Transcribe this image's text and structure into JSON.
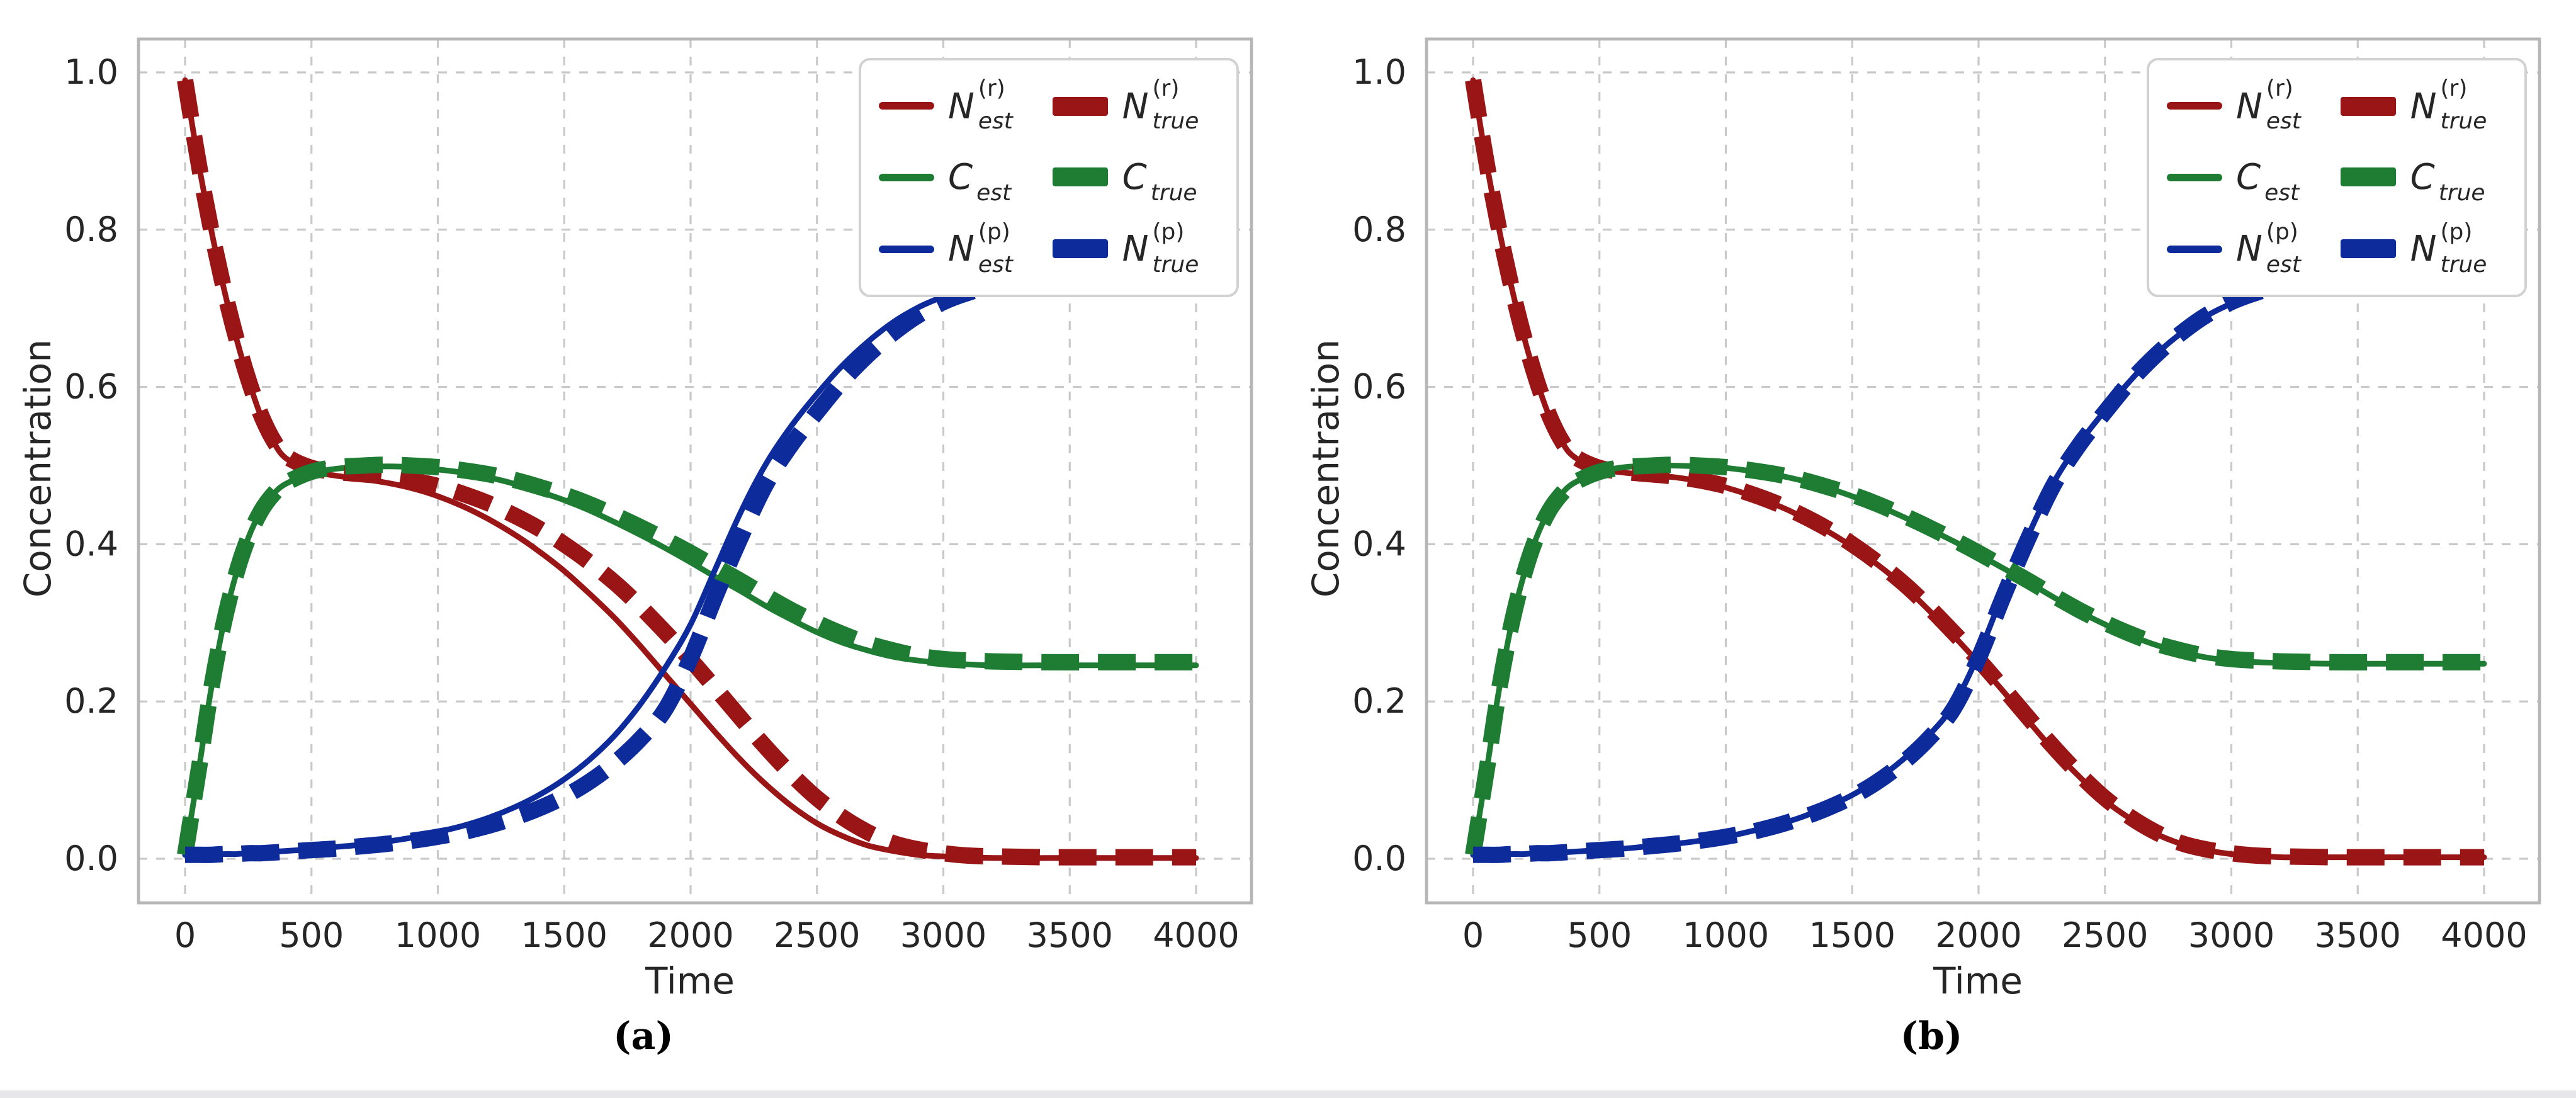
{
  "figure": {
    "background": "#ffffff",
    "bottom_strip_color": "#e7e7ea",
    "text_color": "#262626",
    "grid_color": "#c9c9c9",
    "spine_color": "#b6b6b6"
  },
  "colors": {
    "red": "#9a1515",
    "green": "#1e7d32",
    "blue": "#0e2b9c"
  },
  "legend": {
    "items": [
      {
        "base": "N",
        "sup": "(r)",
        "sub": "est",
        "color": "red",
        "swatch": "line"
      },
      {
        "base": "C",
        "sup": "",
        "sub": "est",
        "color": "green",
        "swatch": "line"
      },
      {
        "base": "N",
        "sup": "(p)",
        "sub": "est",
        "color": "blue",
        "swatch": "line"
      },
      {
        "base": "N",
        "sup": "(r)",
        "sub": "true",
        "color": "red",
        "swatch": "dash"
      },
      {
        "base": "C",
        "sup": "",
        "sub": "true",
        "color": "green",
        "swatch": "dash"
      },
      {
        "base": "N",
        "sup": "(p)",
        "sub": "true",
        "color": "blue",
        "swatch": "dash"
      }
    ]
  },
  "chart_data": [
    {
      "type": "line",
      "caption": "(a)",
      "xlabel": "Time",
      "ylabel": "Concentration",
      "xticks": [
        0,
        500,
        1000,
        1500,
        2000,
        2500,
        3000,
        3500,
        4000
      ],
      "yticklabels": [
        "0.0",
        "0.2",
        "0.4",
        "0.6",
        "0.8",
        "1.0"
      ],
      "xlim": [
        -180,
        4220
      ],
      "ylim": [
        -0.056,
        1.043
      ],
      "grid": true,
      "legend_position": "upper right",
      "x": [
        0,
        30,
        60,
        100,
        150,
        200,
        250,
        300,
        350,
        400,
        500,
        600,
        700,
        800,
        900,
        1000,
        1100,
        1200,
        1300,
        1400,
        1500,
        1600,
        1700,
        1800,
        1900,
        2000,
        2100,
        2200,
        2300,
        2400,
        2500,
        2600,
        2700,
        2800,
        2900,
        3000,
        3100,
        3200,
        3400,
        3600,
        3800,
        4000
      ],
      "series": [
        {
          "name": "N_est^(r)",
          "role": "estimate",
          "color": "red",
          "style": "solid",
          "values": [
            0.99,
            0.93,
            0.873,
            0.805,
            0.73,
            0.665,
            0.61,
            0.563,
            0.53,
            0.509,
            0.493,
            0.487,
            0.483,
            0.478,
            0.471,
            0.461,
            0.448,
            0.432,
            0.413,
            0.391,
            0.366,
            0.337,
            0.306,
            0.271,
            0.234,
            0.197,
            0.16,
            0.125,
            0.094,
            0.067,
            0.045,
            0.029,
            0.017,
            0.01,
            0.005,
            0.003,
            0.002,
            0.001,
            0.001,
            0.001,
            0.001,
            0.001
          ]
        },
        {
          "name": "C_est",
          "role": "estimate",
          "color": "green",
          "style": "solid",
          "values": [
            0.005,
            0.065,
            0.125,
            0.21,
            0.295,
            0.36,
            0.408,
            0.442,
            0.464,
            0.477,
            0.49,
            0.496,
            0.498,
            0.499,
            0.498,
            0.495,
            0.491,
            0.485,
            0.477,
            0.467,
            0.456,
            0.443,
            0.428,
            0.412,
            0.395,
            0.377,
            0.358,
            0.34,
            0.321,
            0.304,
            0.288,
            0.275,
            0.265,
            0.257,
            0.252,
            0.249,
            0.247,
            0.246,
            0.246,
            0.246,
            0.246,
            0.246
          ]
        },
        {
          "name": "N_est^(p)",
          "role": "estimate",
          "color": "blue",
          "style": "solid",
          "values": [
            0.005,
            0.005,
            0.005,
            0.005,
            0.006,
            0.006,
            0.007,
            0.008,
            0.009,
            0.01,
            0.012,
            0.015,
            0.018,
            0.022,
            0.027,
            0.034,
            0.042,
            0.052,
            0.065,
            0.081,
            0.101,
            0.126,
            0.157,
            0.196,
            0.243,
            0.298,
            0.37,
            0.442,
            0.503,
            0.551,
            0.591,
            0.627,
            0.657,
            0.682,
            0.701,
            0.715,
            0.726,
            0.733,
            0.741,
            0.745,
            0.747,
            0.747
          ]
        },
        {
          "name": "N_true^(r)",
          "role": "true",
          "color": "red",
          "style": "dashed",
          "values": [
            0.99,
            0.93,
            0.873,
            0.805,
            0.73,
            0.665,
            0.61,
            0.565,
            0.532,
            0.512,
            0.497,
            0.492,
            0.489,
            0.486,
            0.481,
            0.474,
            0.464,
            0.452,
            0.437,
            0.42,
            0.4,
            0.377,
            0.351,
            0.321,
            0.288,
            0.253,
            0.216,
            0.178,
            0.141,
            0.107,
            0.077,
            0.053,
            0.034,
            0.02,
            0.012,
            0.007,
            0.004,
            0.003,
            0.002,
            0.002,
            0.002,
            0.002
          ]
        },
        {
          "name": "C_true",
          "role": "true",
          "color": "green",
          "style": "dashed",
          "values": [
            0.005,
            0.065,
            0.125,
            0.21,
            0.295,
            0.36,
            0.408,
            0.442,
            0.464,
            0.478,
            0.492,
            0.498,
            0.5,
            0.501,
            0.5,
            0.498,
            0.494,
            0.489,
            0.482,
            0.473,
            0.463,
            0.451,
            0.437,
            0.422,
            0.406,
            0.389,
            0.371,
            0.353,
            0.334,
            0.316,
            0.3,
            0.286,
            0.274,
            0.265,
            0.258,
            0.254,
            0.252,
            0.251,
            0.25,
            0.25,
            0.25,
            0.25
          ]
        },
        {
          "name": "N_true^(p)",
          "role": "true",
          "color": "blue",
          "style": "dashed",
          "values": [
            0.005,
            0.005,
            0.005,
            0.005,
            0.006,
            0.006,
            0.007,
            0.007,
            0.008,
            0.009,
            0.011,
            0.013,
            0.016,
            0.019,
            0.023,
            0.028,
            0.034,
            0.042,
            0.052,
            0.064,
            0.079,
            0.098,
            0.122,
            0.152,
            0.19,
            0.255,
            0.335,
            0.41,
            0.477,
            0.527,
            0.568,
            0.607,
            0.64,
            0.668,
            0.691,
            0.708,
            0.72,
            0.729,
            0.739,
            0.744,
            0.746,
            0.747
          ]
        }
      ]
    },
    {
      "type": "line",
      "caption": "(b)",
      "xlabel": "Time",
      "ylabel": "Concentration",
      "xticks": [
        0,
        500,
        1000,
        1500,
        2000,
        2500,
        3000,
        3500,
        4000
      ],
      "yticklabels": [
        "0.0",
        "0.2",
        "0.4",
        "0.6",
        "0.8",
        "1.0"
      ],
      "xlim": [
        -180,
        4220
      ],
      "ylim": [
        -0.056,
        1.043
      ],
      "grid": true,
      "legend_position": "upper right",
      "x": [
        0,
        30,
        60,
        100,
        150,
        200,
        250,
        300,
        350,
        400,
        500,
        600,
        700,
        800,
        900,
        1000,
        1100,
        1200,
        1300,
        1400,
        1500,
        1600,
        1700,
        1800,
        1900,
        2000,
        2100,
        2200,
        2300,
        2400,
        2500,
        2600,
        2700,
        2800,
        2900,
        3000,
        3100,
        3200,
        3400,
        3600,
        3800,
        4000
      ],
      "series": [
        {
          "name": "N_est^(r)",
          "role": "estimate",
          "color": "red",
          "style": "solid",
          "values": [
            0.99,
            0.93,
            0.873,
            0.805,
            0.73,
            0.665,
            0.61,
            0.564,
            0.531,
            0.511,
            0.496,
            0.491,
            0.488,
            0.485,
            0.48,
            0.472,
            0.462,
            0.45,
            0.435,
            0.417,
            0.397,
            0.374,
            0.348,
            0.317,
            0.284,
            0.249,
            0.212,
            0.174,
            0.137,
            0.104,
            0.074,
            0.051,
            0.032,
            0.019,
            0.011,
            0.006,
            0.004,
            0.002,
            0.002,
            0.002,
            0.002,
            0.002
          ]
        },
        {
          "name": "C_est",
          "role": "estimate",
          "color": "green",
          "style": "solid",
          "values": [
            0.005,
            0.065,
            0.125,
            0.21,
            0.295,
            0.36,
            0.408,
            0.442,
            0.464,
            0.478,
            0.492,
            0.498,
            0.5,
            0.5,
            0.499,
            0.497,
            0.493,
            0.488,
            0.481,
            0.472,
            0.461,
            0.449,
            0.435,
            0.42,
            0.404,
            0.387,
            0.369,
            0.351,
            0.332,
            0.314,
            0.298,
            0.284,
            0.272,
            0.263,
            0.256,
            0.252,
            0.25,
            0.249,
            0.248,
            0.248,
            0.248,
            0.248
          ]
        },
        {
          "name": "N_est^(p)",
          "role": "estimate",
          "color": "blue",
          "style": "solid",
          "values": [
            0.005,
            0.005,
            0.005,
            0.005,
            0.006,
            0.006,
            0.007,
            0.007,
            0.008,
            0.009,
            0.011,
            0.013,
            0.016,
            0.019,
            0.023,
            0.028,
            0.035,
            0.043,
            0.053,
            0.066,
            0.081,
            0.101,
            0.126,
            0.156,
            0.195,
            0.26,
            0.34,
            0.414,
            0.48,
            0.529,
            0.57,
            0.608,
            0.641,
            0.668,
            0.69,
            0.706,
            0.718,
            0.727,
            0.737,
            0.742,
            0.744,
            0.745
          ]
        },
        {
          "name": "N_true^(r)",
          "role": "true",
          "color": "red",
          "style": "dashed",
          "values": [
            0.99,
            0.93,
            0.873,
            0.805,
            0.73,
            0.665,
            0.61,
            0.565,
            0.532,
            0.512,
            0.497,
            0.492,
            0.489,
            0.486,
            0.481,
            0.474,
            0.464,
            0.452,
            0.437,
            0.42,
            0.4,
            0.377,
            0.351,
            0.321,
            0.288,
            0.253,
            0.216,
            0.178,
            0.141,
            0.107,
            0.077,
            0.053,
            0.034,
            0.02,
            0.012,
            0.007,
            0.004,
            0.003,
            0.002,
            0.002,
            0.002,
            0.002
          ]
        },
        {
          "name": "C_true",
          "role": "true",
          "color": "green",
          "style": "dashed",
          "values": [
            0.005,
            0.065,
            0.125,
            0.21,
            0.295,
            0.36,
            0.408,
            0.442,
            0.464,
            0.478,
            0.492,
            0.498,
            0.5,
            0.501,
            0.5,
            0.498,
            0.494,
            0.489,
            0.482,
            0.473,
            0.463,
            0.451,
            0.437,
            0.422,
            0.406,
            0.389,
            0.371,
            0.353,
            0.334,
            0.316,
            0.3,
            0.286,
            0.274,
            0.265,
            0.258,
            0.254,
            0.252,
            0.251,
            0.25,
            0.25,
            0.25,
            0.25
          ]
        },
        {
          "name": "N_true^(p)",
          "role": "true",
          "color": "blue",
          "style": "dashed",
          "values": [
            0.005,
            0.005,
            0.005,
            0.005,
            0.006,
            0.006,
            0.007,
            0.007,
            0.008,
            0.009,
            0.011,
            0.013,
            0.016,
            0.019,
            0.023,
            0.028,
            0.034,
            0.042,
            0.052,
            0.064,
            0.079,
            0.098,
            0.122,
            0.152,
            0.19,
            0.255,
            0.335,
            0.41,
            0.477,
            0.527,
            0.568,
            0.607,
            0.64,
            0.668,
            0.691,
            0.708,
            0.72,
            0.729,
            0.739,
            0.744,
            0.746,
            0.747
          ]
        }
      ]
    }
  ]
}
